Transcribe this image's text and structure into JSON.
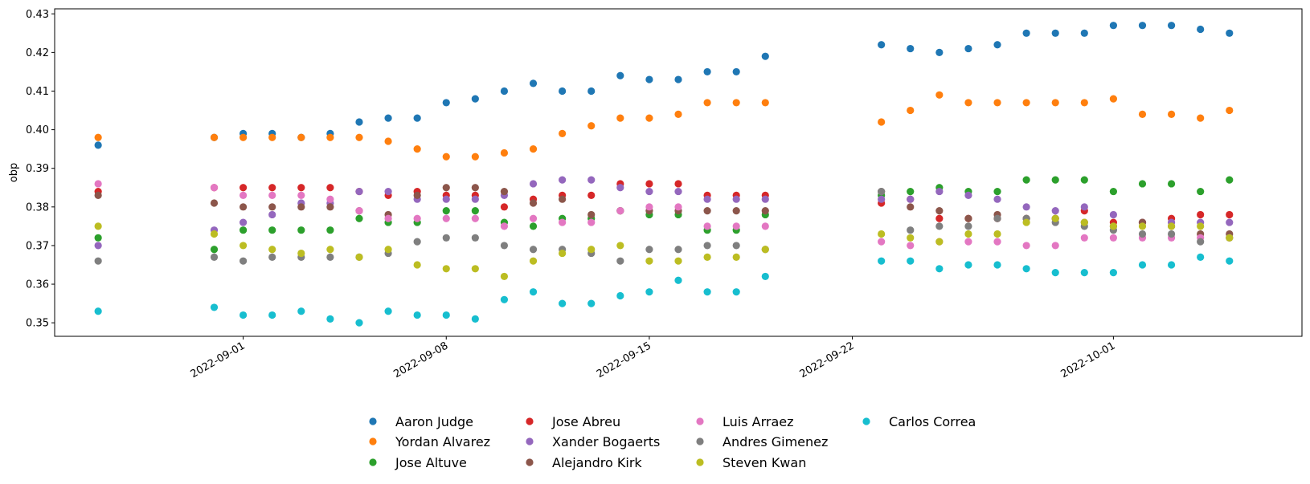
{
  "chart_data": {
    "type": "scatter",
    "xlabel": "",
    "ylabel": "obp",
    "xlim": [
      "2022-08-25T12:00",
      "2022-10-07T12:00"
    ],
    "ylim": [
      0.3465,
      0.4313
    ],
    "grid": false,
    "legend_placement": "bottom-center",
    "x_ticks": [
      "2022-09-01",
      "2022-09-08",
      "2022-09-15",
      "2022-09-22",
      "2022-10-01"
    ],
    "y_ticks": [
      "0.35",
      "0.36",
      "0.37",
      "0.38",
      "0.39",
      "0.40",
      "0.41",
      "0.42",
      "0.43"
    ],
    "dates": [
      "2022-08-27",
      "2022-08-31",
      "2022-09-01",
      "2022-09-02",
      "2022-09-03",
      "2022-09-04",
      "2022-09-05",
      "2022-09-06",
      "2022-09-07",
      "2022-09-08",
      "2022-09-09",
      "2022-09-10",
      "2022-09-11",
      "2022-09-12",
      "2022-09-13",
      "2022-09-14",
      "2022-09-15",
      "2022-09-16",
      "2022-09-17",
      "2022-09-18",
      "2022-09-19",
      "2022-09-23",
      "2022-09-24",
      "2022-09-25",
      "2022-09-26",
      "2022-09-27",
      "2022-09-28",
      "2022-09-29",
      "2022-09-30",
      "2022-10-01",
      "2022-10-02",
      "2022-10-03",
      "2022-10-04",
      "2022-10-05"
    ],
    "series": [
      {
        "name": "Aaron Judge",
        "color": "#1f77b4",
        "values": [
          0.396,
          0.398,
          0.399,
          0.399,
          0.398,
          0.399,
          0.402,
          0.403,
          0.403,
          0.407,
          0.408,
          0.41,
          0.412,
          0.41,
          0.41,
          0.414,
          0.413,
          0.413,
          0.415,
          0.415,
          0.419,
          0.422,
          0.421,
          0.42,
          0.421,
          0.422,
          0.425,
          0.425,
          0.425,
          0.427,
          0.427,
          0.427,
          0.426,
          0.425
        ]
      },
      {
        "name": "Yordan Alvarez",
        "color": "#ff7f0e",
        "values": [
          0.398,
          0.398,
          0.398,
          0.398,
          0.398,
          0.398,
          0.398,
          0.397,
          0.395,
          0.393,
          0.393,
          0.394,
          0.395,
          0.399,
          0.401,
          0.403,
          0.403,
          0.404,
          0.407,
          0.407,
          0.407,
          0.402,
          0.405,
          0.409,
          0.407,
          0.407,
          0.407,
          0.407,
          0.407,
          0.408,
          0.404,
          0.404,
          0.403,
          0.405
        ]
      },
      {
        "name": "Jose Altuve",
        "color": "#2ca02c",
        "values": [
          0.372,
          0.369,
          0.374,
          0.374,
          0.374,
          0.374,
          0.377,
          0.376,
          0.376,
          0.379,
          0.379,
          0.376,
          0.375,
          0.377,
          0.377,
          0.379,
          0.378,
          0.378,
          0.374,
          0.374,
          0.378,
          0.383,
          0.384,
          0.385,
          0.384,
          0.384,
          0.387,
          0.387,
          0.387,
          0.384,
          0.386,
          0.386,
          0.384,
          0.387
        ]
      },
      {
        "name": "Jose Abreu",
        "color": "#d62728",
        "values": [
          0.384,
          0.385,
          0.385,
          0.385,
          0.385,
          0.385,
          0.384,
          0.383,
          0.384,
          0.383,
          0.383,
          0.38,
          0.382,
          0.383,
          0.383,
          0.386,
          0.386,
          0.386,
          0.383,
          0.383,
          0.383,
          0.381,
          0.382,
          0.377,
          0.377,
          0.377,
          0.377,
          0.377,
          0.379,
          0.376,
          0.376,
          0.377,
          0.378,
          0.378
        ]
      },
      {
        "name": "Xander Bogaerts",
        "color": "#9467bd",
        "values": [
          0.37,
          0.374,
          0.376,
          0.378,
          0.381,
          0.381,
          0.384,
          0.384,
          0.382,
          0.382,
          0.382,
          0.383,
          0.386,
          0.387,
          0.387,
          0.385,
          0.384,
          0.384,
          0.382,
          0.382,
          0.382,
          0.382,
          0.382,
          0.384,
          0.383,
          0.382,
          0.38,
          0.379,
          0.38,
          0.378,
          0.376,
          0.376,
          0.376,
          0.376
        ]
      },
      {
        "name": "Alejandro Kirk",
        "color": "#8c564b",
        "values": [
          0.383,
          0.381,
          0.38,
          0.38,
          0.38,
          0.38,
          0.379,
          0.378,
          0.383,
          0.385,
          0.385,
          0.384,
          0.381,
          0.382,
          0.378,
          0.379,
          0.379,
          0.379,
          0.379,
          0.379,
          0.379,
          0.384,
          0.38,
          0.379,
          0.377,
          0.378,
          0.377,
          0.377,
          0.376,
          0.375,
          0.376,
          0.375,
          0.373,
          0.373
        ]
      },
      {
        "name": "Luis Arraez",
        "color": "#e377c2",
        "values": [
          0.386,
          0.385,
          0.383,
          0.383,
          0.383,
          0.382,
          0.379,
          0.377,
          0.377,
          0.377,
          0.377,
          0.375,
          0.377,
          0.376,
          0.376,
          0.379,
          0.38,
          0.38,
          0.375,
          0.375,
          0.375,
          0.371,
          0.37,
          0.371,
          0.371,
          0.371,
          0.37,
          0.37,
          0.372,
          0.372,
          0.372,
          0.372,
          0.372,
          0.372
        ]
      },
      {
        "name": "Andres Gimenez",
        "color": "#7f7f7f",
        "values": [
          0.366,
          0.367,
          0.366,
          0.367,
          0.367,
          0.367,
          0.367,
          0.368,
          0.371,
          0.372,
          0.372,
          0.37,
          0.369,
          0.369,
          0.368,
          0.366,
          0.369,
          0.369,
          0.37,
          0.37,
          0.369,
          0.384,
          0.374,
          0.375,
          0.375,
          0.377,
          0.377,
          0.376,
          0.375,
          0.374,
          0.373,
          0.373,
          0.371,
          0.372
        ]
      },
      {
        "name": "Steven Kwan",
        "color": "#bcbd22",
        "values": [
          0.375,
          0.373,
          0.37,
          0.369,
          0.368,
          0.369,
          0.367,
          0.369,
          0.365,
          0.364,
          0.364,
          0.362,
          0.366,
          0.368,
          0.369,
          0.37,
          0.366,
          0.366,
          0.367,
          0.367,
          0.369,
          0.373,
          0.372,
          0.371,
          0.373,
          0.373,
          0.376,
          0.377,
          0.376,
          0.375,
          0.375,
          0.375,
          0.375,
          0.372
        ]
      },
      {
        "name": "Carlos Correa",
        "color": "#17becf",
        "values": [
          0.353,
          0.354,
          0.352,
          0.352,
          0.353,
          0.351,
          0.35,
          0.353,
          0.352,
          0.352,
          0.351,
          0.356,
          0.358,
          0.355,
          0.355,
          0.357,
          0.358,
          0.361,
          0.358,
          0.358,
          0.362,
          0.366,
          0.366,
          0.364,
          0.365,
          0.365,
          0.364,
          0.363,
          0.363,
          0.363,
          0.365,
          0.365,
          0.367,
          0.366
        ]
      }
    ]
  }
}
